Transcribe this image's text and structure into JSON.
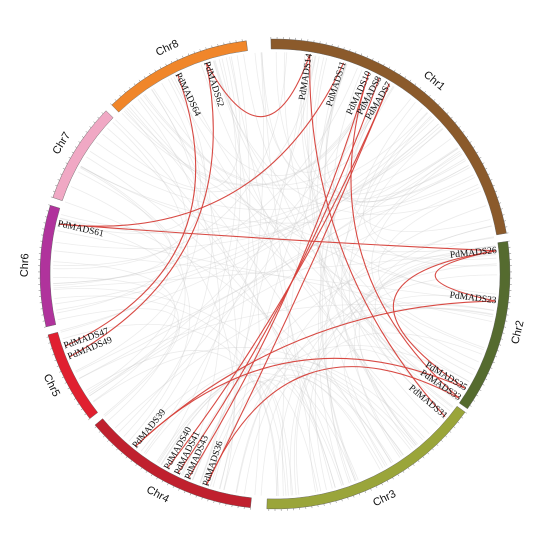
{
  "chromosomes": [
    {
      "name": "Chr1",
      "start": -1,
      "end": 80,
      "color": "#8B5A2B"
    },
    {
      "name": "Chr2",
      "start": 82,
      "end": 125,
      "color": "#556B2F"
    },
    {
      "name": "Chr3",
      "start": 126,
      "end": 182,
      "color": "#9AA53A"
    },
    {
      "name": "Chr4",
      "start": 186,
      "end": 230,
      "color": "#C0202E"
    },
    {
      "name": "Chr5",
      "start": 232,
      "end": 255,
      "color": "#E02030"
    },
    {
      "name": "Chr6",
      "start": 257,
      "end": 287,
      "color": "#B0339C"
    },
    {
      "name": "Chr7",
      "start": 289,
      "end": 314,
      "color": "#F0A8C4"
    },
    {
      "name": "Chr8",
      "start": 316,
      "end": 353,
      "color": "#F0862A"
    }
  ],
  "genes": [
    {
      "name": "PdMADS14",
      "angle": 9
    },
    {
      "name": "PdMADS11",
      "angle": 18
    },
    {
      "name": "PdMADS10",
      "angle": 25
    },
    {
      "name": "PdMADS8",
      "angle": 28
    },
    {
      "name": "PdMADS7",
      "angle": 31
    },
    {
      "name": "PdMADS26",
      "angle": 84
    },
    {
      "name": "PdMADS23",
      "angle": 97
    },
    {
      "name": "PdMADS35",
      "angle": 121
    },
    {
      "name": "PdMADS33",
      "angle": 124
    },
    {
      "name": "PdMADS31",
      "angle": 130
    },
    {
      "name": "PdMADS36",
      "angle": 198
    },
    {
      "name": "PdMADS43",
      "angle": 203
    },
    {
      "name": "PdMADS41",
      "angle": 206
    },
    {
      "name": "PdMADS40",
      "angle": 209
    },
    {
      "name": "PdMADS39",
      "angle": 219
    },
    {
      "name": "PdMADS49",
      "angle": 248
    },
    {
      "name": "PdMADS47",
      "angle": 251
    },
    {
      "name": "PdMADS61",
      "angle": 283
    },
    {
      "name": "PdMADS64",
      "angle": 334
    },
    {
      "name": "PdMADS62",
      "angle": 342
    }
  ],
  "links": [
    {
      "a": "PdMADS14",
      "b": "PdMADS31"
    },
    {
      "a": "PdMADS11",
      "b": "PdMADS61"
    },
    {
      "a": "PdMADS10",
      "b": "PdMADS43"
    },
    {
      "a": "PdMADS8",
      "b": "PdMADS41"
    },
    {
      "a": "PdMADS7",
      "b": "PdMADS40"
    },
    {
      "a": "PdMADS7",
      "b": "PdMADS36"
    },
    {
      "a": "PdMADS26",
      "b": "PdMADS23"
    },
    {
      "a": "PdMADS26",
      "b": "PdMADS35"
    },
    {
      "a": "PdMADS10",
      "b": "PdMADS33"
    },
    {
      "a": "PdMADS64",
      "b": "PdMADS47"
    },
    {
      "a": "PdMADS62",
      "b": "PdMADS49"
    },
    {
      "a": "PdMADS23",
      "b": "PdMADS39"
    },
    {
      "a": "PdMADS35",
      "b": "PdMADS39"
    },
    {
      "a": "PdMADS33",
      "b": "PdMADS36"
    },
    {
      "a": "PdMADS62",
      "b": "PdMADS14"
    },
    {
      "a": "PdMADS61",
      "b": "PdMADS26"
    }
  ]
}
